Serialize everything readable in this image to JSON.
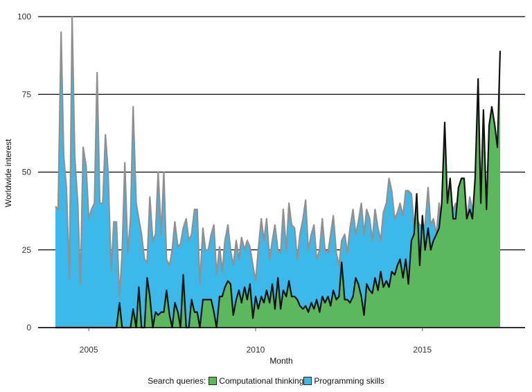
{
  "chart_data": {
    "type": "area",
    "title": "",
    "xlabel": "Month",
    "ylabel": "Worldwide interest",
    "xlim": [
      2004.0,
      2017.6
    ],
    "ylim": [
      0,
      100
    ],
    "x_ticks": [
      {
        "value": 2005,
        "label": "2005"
      },
      {
        "value": 2010,
        "label": "2010"
      },
      {
        "value": 2015,
        "label": "2015"
      }
    ],
    "y_ticks": [
      {
        "value": 0,
        "label": "0"
      },
      {
        "value": 25,
        "label": "25"
      },
      {
        "value": 50,
        "label": "50"
      },
      {
        "value": 75,
        "label": "75"
      },
      {
        "value": 100,
        "label": "100"
      }
    ],
    "grid": "horizontal",
    "legend": {
      "title": "Search queries:",
      "placement": "bottom"
    },
    "series": [
      {
        "name": "Programming skills",
        "fill": "#3cb9e8",
        "stroke": "#909090",
        "points": [
          [
            2004.0,
            39
          ],
          [
            2004.08,
            38
          ],
          [
            2004.17,
            95
          ],
          [
            2004.25,
            55
          ],
          [
            2004.33,
            45
          ],
          [
            2004.42,
            16
          ],
          [
            2004.5,
            100
          ],
          [
            2004.58,
            55
          ],
          [
            2004.67,
            40
          ],
          [
            2004.75,
            14
          ],
          [
            2004.83,
            58
          ],
          [
            2004.92,
            52
          ],
          [
            2005.0,
            35
          ],
          [
            2005.08,
            38
          ],
          [
            2005.17,
            40
          ],
          [
            2005.25,
            82
          ],
          [
            2005.33,
            40
          ],
          [
            2005.42,
            40
          ],
          [
            2005.5,
            62
          ],
          [
            2005.58,
            50
          ],
          [
            2005.67,
            18
          ],
          [
            2005.75,
            34
          ],
          [
            2005.83,
            34
          ],
          [
            2005.92,
            10
          ],
          [
            2006.0,
            24
          ],
          [
            2006.08,
            53
          ],
          [
            2006.17,
            24
          ],
          [
            2006.25,
            35
          ],
          [
            2006.33,
            71
          ],
          [
            2006.42,
            40
          ],
          [
            2006.5,
            35
          ],
          [
            2006.58,
            30
          ],
          [
            2006.67,
            22
          ],
          [
            2006.75,
            21
          ],
          [
            2006.83,
            42
          ],
          [
            2006.92,
            28
          ],
          [
            2007.0,
            30
          ],
          [
            2007.08,
            50
          ],
          [
            2007.17,
            30
          ],
          [
            2007.25,
            50
          ],
          [
            2007.33,
            22
          ],
          [
            2007.42,
            20
          ],
          [
            2007.5,
            25
          ],
          [
            2007.58,
            34
          ],
          [
            2007.67,
            26
          ],
          [
            2007.75,
            27
          ],
          [
            2007.83,
            32
          ],
          [
            2007.92,
            35
          ],
          [
            2008.0,
            28
          ],
          [
            2008.08,
            30
          ],
          [
            2008.17,
            38
          ],
          [
            2008.25,
            38
          ],
          [
            2008.33,
            14
          ],
          [
            2008.42,
            32
          ],
          [
            2008.5,
            25
          ],
          [
            2008.58,
            25
          ],
          [
            2008.67,
            30
          ],
          [
            2008.75,
            33
          ],
          [
            2008.83,
            17
          ],
          [
            2008.92,
            26
          ],
          [
            2009.0,
            18
          ],
          [
            2009.08,
            28
          ],
          [
            2009.17,
            33
          ],
          [
            2009.25,
            25
          ],
          [
            2009.33,
            20
          ],
          [
            2009.42,
            28
          ],
          [
            2009.5,
            22
          ],
          [
            2009.58,
            29
          ],
          [
            2009.67,
            25
          ],
          [
            2009.75,
            28
          ],
          [
            2009.83,
            26
          ],
          [
            2009.92,
            20
          ],
          [
            2010.0,
            15
          ],
          [
            2010.08,
            25
          ],
          [
            2010.17,
            35
          ],
          [
            2010.25,
            28
          ],
          [
            2010.33,
            35
          ],
          [
            2010.42,
            22
          ],
          [
            2010.5,
            28
          ],
          [
            2010.58,
            33
          ],
          [
            2010.67,
            25
          ],
          [
            2010.75,
            24
          ],
          [
            2010.83,
            38
          ],
          [
            2010.92,
            25
          ],
          [
            2011.0,
            40
          ],
          [
            2011.08,
            33
          ],
          [
            2011.17,
            32
          ],
          [
            2011.25,
            22
          ],
          [
            2011.33,
            30
          ],
          [
            2011.42,
            35
          ],
          [
            2011.5,
            41
          ],
          [
            2011.58,
            25
          ],
          [
            2011.67,
            30
          ],
          [
            2011.75,
            33
          ],
          [
            2011.83,
            22
          ],
          [
            2011.92,
            25
          ],
          [
            2012.0,
            35
          ],
          [
            2012.08,
            25
          ],
          [
            2012.17,
            24
          ],
          [
            2012.25,
            30
          ],
          [
            2012.33,
            36
          ],
          [
            2012.42,
            24
          ],
          [
            2012.5,
            20
          ],
          [
            2012.58,
            28
          ],
          [
            2012.67,
            30
          ],
          [
            2012.75,
            24
          ],
          [
            2012.83,
            32
          ],
          [
            2012.92,
            38
          ],
          [
            2013.0,
            30
          ],
          [
            2013.08,
            34
          ],
          [
            2013.17,
            40
          ],
          [
            2013.25,
            30
          ],
          [
            2013.33,
            38
          ],
          [
            2013.42,
            35
          ],
          [
            2013.5,
            28
          ],
          [
            2013.58,
            38
          ],
          [
            2013.67,
            32
          ],
          [
            2013.75,
            28
          ],
          [
            2013.83,
            37
          ],
          [
            2013.92,
            40
          ],
          [
            2014.0,
            48
          ],
          [
            2014.08,
            44
          ],
          [
            2014.17,
            35
          ],
          [
            2014.25,
            37
          ],
          [
            2014.33,
            40
          ],
          [
            2014.42,
            36
          ],
          [
            2014.5,
            44
          ],
          [
            2014.58,
            44
          ],
          [
            2014.67,
            43
          ],
          [
            2014.75,
            33
          ],
          [
            2014.83,
            35
          ],
          [
            2014.92,
            33
          ],
          [
            2015.0,
            33
          ],
          [
            2015.08,
            33
          ],
          [
            2015.17,
            45
          ],
          [
            2015.25,
            33
          ],
          [
            2015.33,
            35
          ],
          [
            2015.42,
            30
          ],
          [
            2015.5,
            40
          ],
          [
            2015.58,
            30
          ],
          [
            2015.67,
            35
          ],
          [
            2015.75,
            40
          ],
          [
            2015.83,
            34
          ],
          [
            2015.92,
            38
          ],
          [
            2016.0,
            40
          ],
          [
            2016.08,
            36
          ],
          [
            2016.17,
            37
          ],
          [
            2016.25,
            35
          ],
          [
            2016.33,
            35
          ],
          [
            2016.42,
            42
          ],
          [
            2016.5,
            38
          ],
          [
            2016.58,
            38
          ],
          [
            2016.67,
            30
          ],
          [
            2016.75,
            40
          ],
          [
            2016.83,
            40
          ],
          [
            2016.92,
            38
          ],
          [
            2017.0,
            42
          ],
          [
            2017.08,
            45
          ],
          [
            2017.17,
            42
          ],
          [
            2017.25,
            35
          ]
        ]
      },
      {
        "name": "Computational thinking",
        "fill": "#5cb85c",
        "stroke": "#111111",
        "points": [
          [
            2004.0,
            0
          ],
          [
            2005.75,
            0
          ],
          [
            2005.83,
            0
          ],
          [
            2005.92,
            8
          ],
          [
            2006.0,
            0
          ],
          [
            2006.08,
            0
          ],
          [
            2006.17,
            0
          ],
          [
            2006.25,
            0
          ],
          [
            2006.33,
            6
          ],
          [
            2006.42,
            0
          ],
          [
            2006.5,
            13
          ],
          [
            2006.58,
            0
          ],
          [
            2006.67,
            0
          ],
          [
            2006.75,
            16
          ],
          [
            2006.83,
            10
          ],
          [
            2006.92,
            0
          ],
          [
            2007.0,
            5
          ],
          [
            2007.08,
            4
          ],
          [
            2007.17,
            5
          ],
          [
            2007.25,
            5
          ],
          [
            2007.33,
            12
          ],
          [
            2007.42,
            4
          ],
          [
            2007.5,
            0
          ],
          [
            2007.58,
            8
          ],
          [
            2007.67,
            5
          ],
          [
            2007.75,
            0
          ],
          [
            2007.83,
            17
          ],
          [
            2007.92,
            0
          ],
          [
            2008.0,
            0
          ],
          [
            2008.08,
            9
          ],
          [
            2008.17,
            5
          ],
          [
            2008.25,
            5
          ],
          [
            2008.33,
            0
          ],
          [
            2008.42,
            9
          ],
          [
            2008.5,
            9
          ],
          [
            2008.58,
            9
          ],
          [
            2008.67,
            9
          ],
          [
            2008.75,
            5
          ],
          [
            2008.83,
            0
          ],
          [
            2008.92,
            10
          ],
          [
            2009.0,
            10
          ],
          [
            2009.08,
            13
          ],
          [
            2009.17,
            15
          ],
          [
            2009.25,
            14
          ],
          [
            2009.33,
            4
          ],
          [
            2009.42,
            9
          ],
          [
            2009.5,
            12
          ],
          [
            2009.58,
            8
          ],
          [
            2009.67,
            13
          ],
          [
            2009.75,
            9
          ],
          [
            2009.83,
            14
          ],
          [
            2009.92,
            3
          ],
          [
            2010.0,
            10
          ],
          [
            2010.08,
            6
          ],
          [
            2010.17,
            10
          ],
          [
            2010.25,
            8
          ],
          [
            2010.33,
            12
          ],
          [
            2010.42,
            8
          ],
          [
            2010.5,
            14
          ],
          [
            2010.58,
            6
          ],
          [
            2010.67,
            16
          ],
          [
            2010.75,
            6
          ],
          [
            2010.83,
            12
          ],
          [
            2010.92,
            10
          ],
          [
            2011.0,
            15
          ],
          [
            2011.08,
            10
          ],
          [
            2011.17,
            10
          ],
          [
            2011.25,
            9
          ],
          [
            2011.33,
            7
          ],
          [
            2011.42,
            6
          ],
          [
            2011.5,
            7
          ],
          [
            2011.58,
            5
          ],
          [
            2011.67,
            8
          ],
          [
            2011.75,
            6
          ],
          [
            2011.83,
            9
          ],
          [
            2011.92,
            5
          ],
          [
            2012.0,
            10
          ],
          [
            2012.08,
            8
          ],
          [
            2012.17,
            10
          ],
          [
            2012.25,
            7
          ],
          [
            2012.33,
            12
          ],
          [
            2012.42,
            9
          ],
          [
            2012.5,
            10
          ],
          [
            2012.58,
            21
          ],
          [
            2012.67,
            9
          ],
          [
            2012.75,
            9
          ],
          [
            2012.83,
            8
          ],
          [
            2012.92,
            10
          ],
          [
            2013.0,
            16
          ],
          [
            2013.08,
            14
          ],
          [
            2013.17,
            10
          ],
          [
            2013.25,
            4
          ],
          [
            2013.33,
            14
          ],
          [
            2013.42,
            12
          ],
          [
            2013.5,
            11
          ],
          [
            2013.58,
            16
          ],
          [
            2013.67,
            12
          ],
          [
            2013.75,
            18
          ],
          [
            2013.83,
            13
          ],
          [
            2013.92,
            15
          ],
          [
            2014.0,
            13
          ],
          [
            2014.08,
            18
          ],
          [
            2014.17,
            17
          ],
          [
            2014.25,
            20
          ],
          [
            2014.33,
            22
          ],
          [
            2014.42,
            16
          ],
          [
            2014.5,
            22
          ],
          [
            2014.58,
            14
          ],
          [
            2014.67,
            28
          ],
          [
            2014.75,
            30
          ],
          [
            2014.83,
            43
          ],
          [
            2014.92,
            20
          ],
          [
            2015.0,
            36
          ],
          [
            2015.08,
            25
          ],
          [
            2015.17,
            32
          ],
          [
            2015.25,
            25
          ],
          [
            2015.33,
            28
          ],
          [
            2015.42,
            30
          ],
          [
            2015.5,
            32
          ],
          [
            2015.58,
            40
          ],
          [
            2015.67,
            66
          ],
          [
            2015.75,
            40
          ],
          [
            2015.83,
            48
          ],
          [
            2015.92,
            35
          ],
          [
            2016.0,
            35
          ],
          [
            2016.08,
            45
          ],
          [
            2016.17,
            48
          ],
          [
            2016.25,
            48
          ],
          [
            2016.33,
            35
          ],
          [
            2016.42,
            38
          ],
          [
            2016.5,
            35
          ],
          [
            2016.58,
            48
          ],
          [
            2016.67,
            80
          ],
          [
            2016.75,
            40
          ],
          [
            2016.83,
            70
          ],
          [
            2016.92,
            38
          ],
          [
            2017.0,
            65
          ],
          [
            2017.08,
            71
          ],
          [
            2017.17,
            65
          ],
          [
            2017.25,
            58
          ],
          [
            2017.33,
            89
          ]
        ]
      }
    ]
  }
}
